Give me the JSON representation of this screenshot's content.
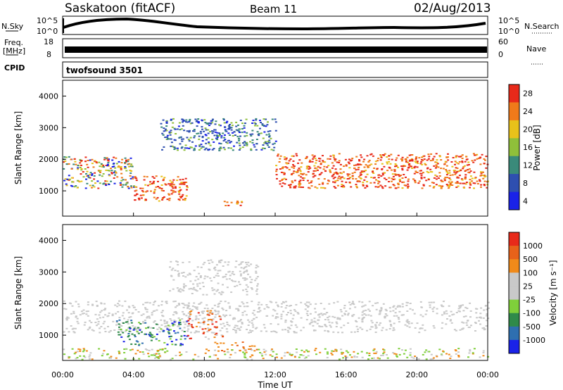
{
  "header": {
    "station": "Saskatoon (fitACF)",
    "beam": "Beam 11",
    "date": "02/Aug/2013"
  },
  "noise_panel": {
    "left_label": "N.Sky",
    "right_label": "N.Search",
    "left_ticks": [
      "10^5",
      "10^0"
    ],
    "right_ticks": [
      "10^5",
      "10^0"
    ]
  },
  "freq_panel": {
    "left_label_1": "Freq.",
    "left_label_2": "[MHz]",
    "right_label": "Nave",
    "left_ticks": [
      "18",
      "8"
    ],
    "right_ticks": [
      "60",
      "0"
    ]
  },
  "cpid": {
    "label": "CPID",
    "program": "twofsound 3501"
  },
  "chart_data": [
    {
      "type": "heatmap",
      "quantity": "Power",
      "ylabel": "Slant Range [km]",
      "y_ticks": [
        "1000",
        "2000",
        "3000",
        "4000"
      ],
      "ylim": [
        200,
        4500
      ],
      "colorbar_label": "Power [dB]",
      "colorbar_ticks": [
        "4",
        "8",
        "12",
        "16",
        "20",
        "24",
        "28"
      ],
      "colorbar_colors": [
        "#1a22e8",
        "#2e4fb0",
        "#3a8a7a",
        "#8fbf3a",
        "#e8c21a",
        "#f07a1a",
        "#e82a1a"
      ],
      "bands": [
        {
          "start_ut": 0.0,
          "end_ut": 4.0,
          "range_low": 1100,
          "range_high": 2100,
          "level": "mixed"
        },
        {
          "start_ut": 4.0,
          "end_ut": 7.0,
          "range_low": 700,
          "range_high": 1500,
          "level": "high"
        },
        {
          "start_ut": 9.0,
          "end_ut": 10.5,
          "range_low": 550,
          "range_high": 700,
          "level": "high"
        },
        {
          "start_ut": 12.0,
          "end_ut": 24.0,
          "range_low": 1100,
          "range_high": 2200,
          "level": "high"
        },
        {
          "start_ut": 5.5,
          "end_ut": 12.0,
          "range_low": 2300,
          "range_high": 3300,
          "level": "low"
        }
      ]
    },
    {
      "type": "heatmap",
      "quantity": "Velocity",
      "ylabel": "Slant Range [km]",
      "y_ticks": [
        "1000",
        "2000",
        "3000",
        "4000"
      ],
      "ylim": [
        200,
        4500
      ],
      "colorbar_label": "Velocity [m s⁻¹]",
      "colorbar_ticks": [
        "1000",
        "500",
        "100",
        "25",
        "-25",
        "-100",
        "-500",
        "-1000"
      ],
      "colorbar_colors": [
        "#1a22e8",
        "#2e6fb0",
        "#2f8a4a",
        "#7fcf3a",
        "#c9c9c9",
        "#c9c9c9",
        "#f08a1a",
        "#e8621a",
        "#e82a1a"
      ]
    }
  ],
  "x_axis": {
    "label": "Time UT",
    "ticks": [
      "00:00",
      "04:00",
      "08:00",
      "12:00",
      "16:00",
      "20:00",
      "00:00"
    ],
    "range_hours": [
      0,
      24
    ]
  }
}
